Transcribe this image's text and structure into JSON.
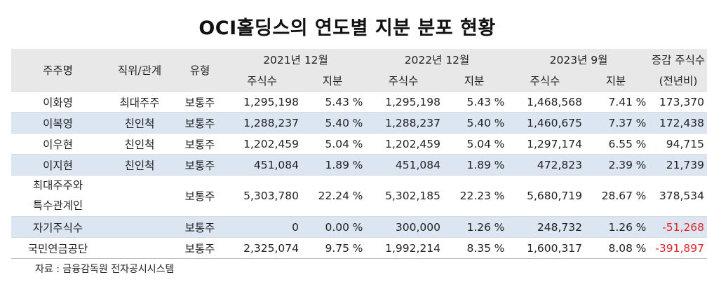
{
  "title": "OCI홀딩스의 연도별 지분 분포 현황",
  "headers": {
    "shareholder": "주주명",
    "relation": "직위/관계",
    "type": "유형",
    "y2021": "2021년 12월",
    "y2022": "2022년 12월",
    "y2023": "2023년 9월",
    "change_line1": "증감 주식수",
    "change_line2": "(전년비)",
    "shares": "주식수",
    "stake": "지분"
  },
  "rows": [
    {
      "name": "이화영",
      "relation": "최대주주",
      "type": "보통주",
      "s21": "1,295,198",
      "p21": "5.43",
      "s22": "1,295,198",
      "p22": "5.43",
      "s23": "1,468,568",
      "p23": "7.41",
      "change": "173,370"
    },
    {
      "name": "이복영",
      "relation": "친인척",
      "type": "보통주",
      "s21": "1,288,237",
      "p21": "5.40",
      "s22": "1,288,237",
      "p22": "5.40",
      "s23": "1,460,675",
      "p23": "7.37",
      "change": "172,438"
    },
    {
      "name": "이우현",
      "relation": "친인척",
      "type": "보통주",
      "s21": "1,202,459",
      "p21": "5.04",
      "s22": "1,202,459",
      "p22": "5.04",
      "s23": "1,297,174",
      "p23": "6.55",
      "change": "94,715"
    },
    {
      "name": "이지현",
      "relation": "친인척",
      "type": "보통주",
      "s21": "451,084",
      "p21": "1.89",
      "s22": "451,084",
      "p22": "1.89",
      "s23": "472,823",
      "p23": "2.39",
      "change": "21,739"
    },
    {
      "name": "최대주주와",
      "name2": "특수관계인",
      "relation": "",
      "type": "보통주",
      "s21": "5,303,780",
      "p21": "22.24",
      "s22": "5,302,185",
      "p22": "22.23",
      "s23": "5,680,719",
      "p23": "28.67",
      "change": "378,534"
    },
    {
      "name": "자기주식수",
      "relation": "",
      "type": "보통주",
      "s21": "0",
      "p21": "0.00",
      "s22": "300,000",
      "p22": "1.26",
      "s23": "248,732",
      "p23": "1.26",
      "change": "-51,268"
    },
    {
      "name": "국민연금공단",
      "relation": "",
      "type": "보통주",
      "s21": "2,325,074",
      "p21": "9.75",
      "s22": "1,992,214",
      "p22": "8.35",
      "s23": "1,600,317",
      "p23": "8.08",
      "change": "-391,897"
    }
  ],
  "percent_sign": "%",
  "source": "자료 : 금융감독원 전자공시시스템",
  "colors": {
    "row_shade": "#dce6f2",
    "header_bg": "#e8e8e8",
    "negative": "#e0262b"
  }
}
